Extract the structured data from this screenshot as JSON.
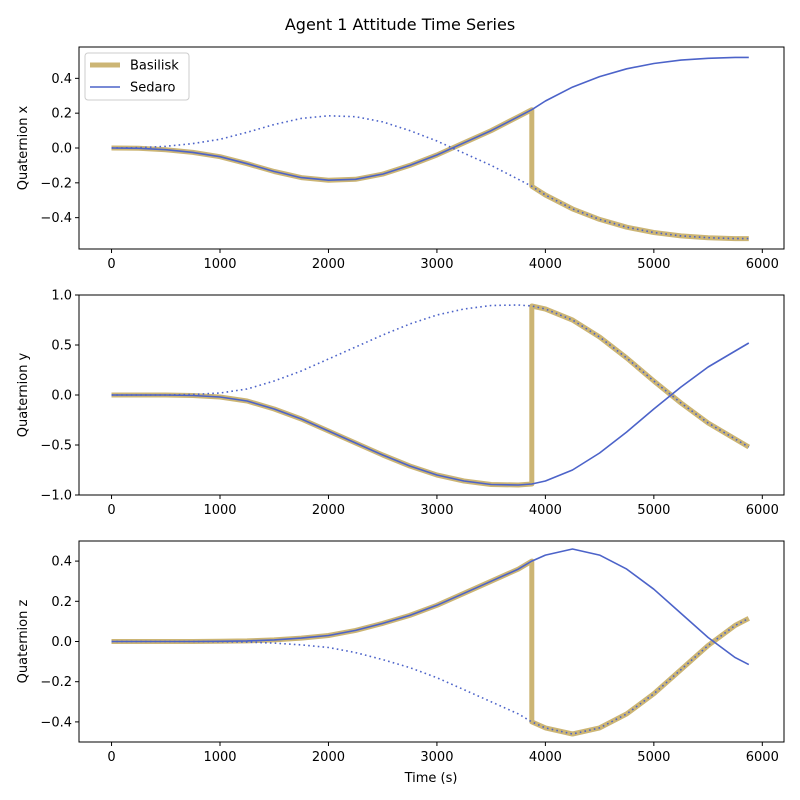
{
  "chart_data": {
    "type": "line",
    "title": "Agent 1 Attitude Time Series",
    "xlabel": "Time (s)",
    "xlim": [
      -300,
      6200
    ],
    "xticks": [
      0,
      1000,
      2000,
      3000,
      4000,
      5000,
      6000
    ],
    "legend": {
      "placement": "top-left",
      "entries": [
        "Basilisk",
        "Sedaro"
      ]
    },
    "colors": {
      "basilisk": "#ccb574",
      "sedaro": "#4c63c9"
    },
    "grid": false,
    "x": [
      0,
      250,
      500,
      750,
      1000,
      1250,
      1500,
      1750,
      2000,
      2250,
      2500,
      2750,
      3000,
      3250,
      3500,
      3750,
      3875,
      4000,
      4250,
      4500,
      4750,
      5000,
      5250,
      5500,
      5750,
      5875
    ],
    "subplots": [
      {
        "ylabel": "Quaternion x",
        "ylim": [
          -0.58,
          0.58
        ],
        "yticks": [
          -0.4,
          -0.2,
          0.0,
          0.2,
          0.4
        ],
        "series": [
          {
            "name": "Basilisk",
            "style": "thick",
            "x": [
              0,
              250,
              500,
              750,
              1000,
              1250,
              1500,
              1750,
              2000,
              2250,
              2500,
              2750,
              3000,
              3250,
              3500,
              3750,
              3875,
              3875,
              4000,
              4250,
              4500,
              4750,
              5000,
              5250,
              5500,
              5750,
              5875
            ],
            "y": [
              0.0,
              -0.002,
              -0.01,
              -0.025,
              -0.05,
              -0.09,
              -0.135,
              -0.17,
              -0.185,
              -0.18,
              -0.15,
              -0.1,
              -0.04,
              0.03,
              0.1,
              0.18,
              0.22,
              -0.22,
              -0.27,
              -0.35,
              -0.41,
              -0.455,
              -0.485,
              -0.505,
              -0.515,
              -0.52,
              -0.52
            ]
          },
          {
            "name": "Sedaro",
            "style": "solid",
            "x": [
              0,
              250,
              500,
              750,
              1000,
              1250,
              1500,
              1750,
              2000,
              2250,
              2500,
              2750,
              3000,
              3250,
              3500,
              3750,
              3875,
              4000,
              4250,
              4500,
              4750,
              5000,
              5250,
              5500,
              5750,
              5875
            ],
            "y": [
              0.0,
              -0.002,
              -0.01,
              -0.025,
              -0.05,
              -0.09,
              -0.135,
              -0.17,
              -0.185,
              -0.18,
              -0.15,
              -0.1,
              -0.04,
              0.03,
              0.1,
              0.18,
              0.22,
              0.27,
              0.35,
              0.41,
              0.455,
              0.485,
              0.505,
              0.515,
              0.52,
              0.52
            ]
          },
          {
            "name": "",
            "style": "dotted",
            "x": [
              0,
              250,
              500,
              750,
              1000,
              1250,
              1500,
              1750,
              2000,
              2250,
              2500,
              2750,
              3000,
              3250,
              3500,
              3750,
              3875,
              4000,
              4250,
              4500,
              4750,
              5000,
              5250,
              5500,
              5750,
              5875
            ],
            "y": [
              0.0,
              0.002,
              0.01,
              0.025,
              0.05,
              0.09,
              0.135,
              0.17,
              0.185,
              0.18,
              0.15,
              0.1,
              0.04,
              -0.03,
              -0.1,
              -0.18,
              -0.22,
              -0.27,
              -0.35,
              -0.41,
              -0.455,
              -0.485,
              -0.505,
              -0.515,
              -0.52,
              -0.52
            ]
          }
        ]
      },
      {
        "ylabel": "Quaternion y",
        "ylim": [
          -1.0,
          1.0
        ],
        "yticks": [
          -1.0,
          -0.5,
          0.0,
          0.5,
          1.0
        ],
        "series": [
          {
            "name": "Basilisk",
            "style": "thick",
            "x": [
              0,
              250,
              500,
              750,
              1000,
              1250,
              1500,
              1750,
              2000,
              2250,
              2500,
              2750,
              3000,
              3250,
              3500,
              3750,
              3875,
              3875,
              4000,
              4250,
              4500,
              4750,
              5000,
              5250,
              5500,
              5750,
              5875
            ],
            "y": [
              0.0,
              0.0,
              0.0,
              -0.005,
              -0.02,
              -0.06,
              -0.14,
              -0.24,
              -0.36,
              -0.48,
              -0.6,
              -0.71,
              -0.8,
              -0.86,
              -0.895,
              -0.9,
              -0.89,
              0.89,
              0.86,
              0.75,
              0.58,
              0.37,
              0.14,
              -0.08,
              -0.28,
              -0.44,
              -0.52
            ]
          },
          {
            "name": "Sedaro",
            "style": "solid",
            "x": [
              0,
              250,
              500,
              750,
              1000,
              1250,
              1500,
              1750,
              2000,
              2250,
              2500,
              2750,
              3000,
              3250,
              3500,
              3750,
              3875,
              4000,
              4250,
              4500,
              4750,
              5000,
              5250,
              5500,
              5750,
              5875
            ],
            "y": [
              0.0,
              0.0,
              0.0,
              -0.005,
              -0.02,
              -0.06,
              -0.14,
              -0.24,
              -0.36,
              -0.48,
              -0.6,
              -0.71,
              -0.8,
              -0.86,
              -0.895,
              -0.9,
              -0.89,
              -0.86,
              -0.75,
              -0.58,
              -0.37,
              -0.14,
              0.08,
              0.28,
              0.44,
              0.52
            ]
          },
          {
            "name": "",
            "style": "dotted",
            "x": [
              0,
              250,
              500,
              750,
              1000,
              1250,
              1500,
              1750,
              2000,
              2250,
              2500,
              2750,
              3000,
              3250,
              3500,
              3750,
              3875,
              4000,
              4250,
              4500,
              4750,
              5000,
              5250,
              5500,
              5750,
              5875
            ],
            "y": [
              0.0,
              0.0,
              0.0,
              0.005,
              0.02,
              0.06,
              0.14,
              0.24,
              0.36,
              0.48,
              0.6,
              0.71,
              0.8,
              0.86,
              0.895,
              0.9,
              0.89,
              0.86,
              0.75,
              0.58,
              0.37,
              0.14,
              -0.08,
              -0.28,
              -0.44,
              -0.52
            ]
          }
        ]
      },
      {
        "ylabel": "Quaternion z",
        "ylim": [
          -0.5,
          0.5
        ],
        "yticks": [
          -0.4,
          -0.2,
          0.0,
          0.2,
          0.4
        ],
        "series": [
          {
            "name": "Basilisk",
            "style": "thick",
            "x": [
              0,
              250,
              500,
              750,
              1000,
              1250,
              1500,
              1750,
              2000,
              2250,
              2500,
              2750,
              3000,
              3250,
              3500,
              3750,
              3875,
              3875,
              4000,
              4250,
              4500,
              4750,
              5000,
              5250,
              5500,
              5750,
              5875
            ],
            "y": [
              0.0,
              0.0,
              0.0,
              0.0,
              0.001,
              0.003,
              0.008,
              0.017,
              0.03,
              0.055,
              0.09,
              0.13,
              0.18,
              0.24,
              0.3,
              0.36,
              0.4,
              -0.4,
              -0.43,
              -0.46,
              -0.43,
              -0.36,
              -0.26,
              -0.14,
              -0.02,
              0.08,
              0.115
            ]
          },
          {
            "name": "Sedaro",
            "style": "solid",
            "x": [
              0,
              250,
              500,
              750,
              1000,
              1250,
              1500,
              1750,
              2000,
              2250,
              2500,
              2750,
              3000,
              3250,
              3500,
              3750,
              3875,
              4000,
              4250,
              4500,
              4750,
              5000,
              5250,
              5500,
              5750,
              5875
            ],
            "y": [
              0.0,
              0.0,
              0.0,
              0.0,
              0.001,
              0.003,
              0.008,
              0.017,
              0.03,
              0.055,
              0.09,
              0.13,
              0.18,
              0.24,
              0.3,
              0.36,
              0.4,
              0.43,
              0.46,
              0.43,
              0.36,
              0.26,
              0.14,
              0.02,
              -0.08,
              -0.115
            ]
          },
          {
            "name": "",
            "style": "dotted",
            "x": [
              0,
              250,
              500,
              750,
              1000,
              1250,
              1500,
              1750,
              2000,
              2250,
              2500,
              2750,
              3000,
              3250,
              3500,
              3750,
              3875,
              4000,
              4250,
              4500,
              4750,
              5000,
              5250,
              5500,
              5750,
              5875
            ],
            "y": [
              0.0,
              0.0,
              0.0,
              0.0,
              -0.001,
              -0.003,
              -0.008,
              -0.017,
              -0.03,
              -0.055,
              -0.09,
              -0.13,
              -0.18,
              -0.24,
              -0.3,
              -0.36,
              -0.4,
              -0.43,
              -0.46,
              -0.43,
              -0.36,
              -0.26,
              -0.14,
              -0.02,
              0.08,
              0.115
            ]
          }
        ]
      }
    ]
  }
}
